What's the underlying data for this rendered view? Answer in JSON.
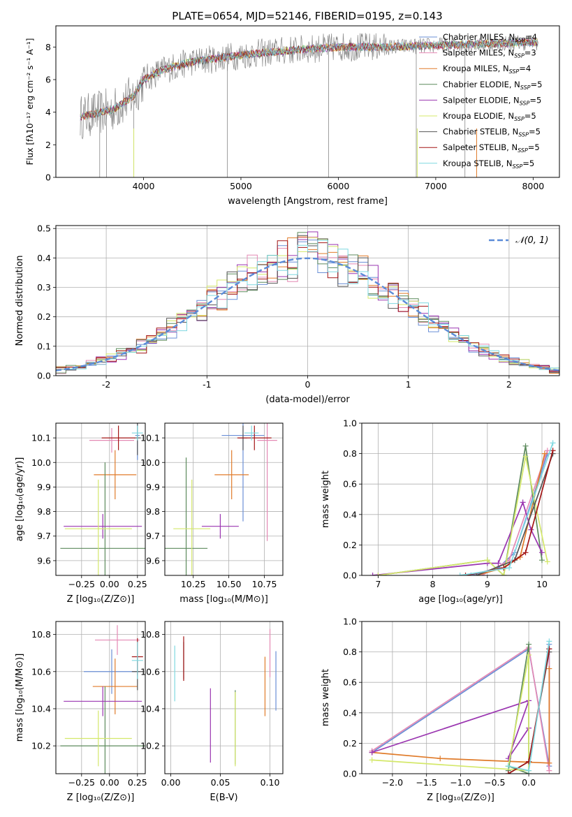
{
  "title": "PLATE=0654, MJD=52146, FIBERID=0195, z=0.143",
  "colors": {
    "Chabrier MILES": "#6a8fd6",
    "Salpeter MILES": "#e489b4",
    "Kroupa MILES": "#e07b2a",
    "Chabrier ELODIE": "#5c8a5c",
    "Salpeter ELODIE": "#9a35b0",
    "Kroupa ELODIE": "#d4e86a",
    "Chabrier STELIB": "#555555",
    "Salpeter STELIB": "#a31515",
    "Kroupa STELIB": "#7fd8e0",
    "data": "#888888",
    "normal": "#5b8bd8"
  },
  "chart_data": [
    {
      "id": "spectrum",
      "type": "line",
      "xlabel": "wavelength [Angstrom, rest frame]",
      "ylabel": "Flux [fλ10⁻¹⁷ erg cm⁻² s⁻¹ A⁻¹]",
      "xlim": [
        3100,
        8270
      ],
      "ylim": [
        0,
        9.3
      ],
      "xticks": [
        4000,
        5000,
        6000,
        7000,
        8000
      ],
      "yticks": [
        0,
        2,
        4,
        6,
        8
      ],
      "grid": false,
      "legend": "right",
      "model_anchor_x": [
        3350,
        3500,
        3700,
        3900,
        4000,
        4200,
        4500,
        5000,
        5500,
        6000,
        6500,
        7000,
        7500,
        8050
      ],
      "model_anchor_y": [
        3.7,
        3.9,
        4.2,
        5.0,
        6.0,
        6.6,
        7.1,
        7.5,
        7.8,
        8.0,
        8.0,
        8.1,
        8.2,
        8.3
      ],
      "series": [
        {
          "name": "Chabrier MILES",
          "nssp": "4"
        },
        {
          "name": "Salpeter MILES",
          "nssp": "3"
        },
        {
          "name": "Kroupa MILES",
          "nssp": "4"
        },
        {
          "name": "Chabrier ELODIE",
          "nssp": "5"
        },
        {
          "name": "Salpeter ELODIE",
          "nssp": "5"
        },
        {
          "name": "Kroupa ELODIE",
          "nssp": "5"
        },
        {
          "name": "Chabrier STELIB",
          "nssp": "5"
        },
        {
          "name": "Salpeter STELIB",
          "nssp": "5"
        },
        {
          "name": "Kroupa STELIB",
          "nssp": "5"
        }
      ]
    },
    {
      "id": "residuals",
      "type": "step",
      "xlabel": "(data-model)/error",
      "ylabel": "Normed distribution",
      "xlim": [
        -2.5,
        2.5
      ],
      "ylim": [
        0,
        0.51
      ],
      "xticks": [
        -2,
        -1,
        0,
        1,
        2
      ],
      "yticks": [
        0.0,
        0.1,
        0.2,
        0.3,
        0.4,
        0.5
      ],
      "grid": true,
      "legend": "top-right",
      "normal_label": "𝒩(0, 1)",
      "bin_width": 0.1
    },
    {
      "id": "age-vs-Z",
      "type": "errorbar",
      "xlabel": "Z [log₁₀(Z/Z⊙)]",
      "ylabel": "age  [log₁₀(age/yr)]",
      "xlim": [
        -0.48,
        0.32
      ],
      "ylim": [
        9.54,
        10.16
      ],
      "xticks": [
        -0.25,
        0.0,
        0.25
      ],
      "xticklabels": [
        "−0.25",
        "0.00",
        "0.25"
      ],
      "yticks": [
        9.6,
        9.7,
        9.8,
        9.9,
        10.0,
        10.1
      ],
      "grid": true,
      "points": [
        {
          "s": "Chabrier MILES",
          "x": 0.25,
          "xe": 0.02,
          "y": 10.11,
          "ye": 0.1
        },
        {
          "s": "Salpeter MILES",
          "x": 0.02,
          "xe": 0.2,
          "y": 10.09,
          "ye": 0.05
        },
        {
          "s": "Kroupa MILES",
          "x": 0.05,
          "xe": 0.19,
          "y": 9.95,
          "ye": 0.1
        },
        {
          "s": "Chabrier ELODIE",
          "x": -0.04,
          "xe": 0.4,
          "y": 9.65,
          "ye": 0.35
        },
        {
          "s": "Salpeter ELODIE",
          "x": -0.06,
          "xe": 0.35,
          "y": 9.74,
          "ye": 0.05
        },
        {
          "s": "Kroupa ELODIE",
          "x": -0.1,
          "xe": 0.3,
          "y": 9.73,
          "ye": 0.2
        },
        {
          "s": "Chabrier STELIB",
          "x": 0.25,
          "xe": 0.03,
          "y": 10.1,
          "ye": 0.07
        },
        {
          "s": "Salpeter STELIB",
          "x": 0.08,
          "xe": 0.15,
          "y": 10.1,
          "ye": 0.05
        },
        {
          "s": "Kroupa STELIB",
          "x": 0.25,
          "xe": 0.05,
          "y": 10.12,
          "ye": 0.03
        }
      ]
    },
    {
      "id": "age-vs-mass",
      "type": "errorbar",
      "xlabel": "mass [log₁₀(M/M⊙)]",
      "ylabel": "",
      "xlim": [
        10.05,
        10.88
      ],
      "ylim": [
        9.54,
        10.16
      ],
      "xticks": [
        10.25,
        10.5,
        10.75
      ],
      "xticklabels": [
        "10.25",
        "10.50",
        "10.75"
      ],
      "yticks": [
        9.6,
        9.7,
        9.8,
        9.9,
        10.0,
        10.1
      ],
      "grid": true,
      "points": [
        {
          "s": "Chabrier MILES",
          "x": 10.6,
          "xe": 0.15,
          "y": 10.11,
          "ye": 0.35
        },
        {
          "s": "Salpeter MILES",
          "x": 10.77,
          "xe": 0.07,
          "y": 10.09,
          "ye": 0.41
        },
        {
          "s": "Kroupa MILES",
          "x": 10.52,
          "xe": 0.12,
          "y": 9.95,
          "ye": 0.1
        },
        {
          "s": "Chabrier ELODIE",
          "x": 10.2,
          "xe": 0.15,
          "y": 9.65,
          "ye": 0.37
        },
        {
          "s": "Salpeter ELODIE",
          "x": 10.44,
          "xe": 0.13,
          "y": 9.74,
          "ye": 0.05
        },
        {
          "s": "Kroupa ELODIE",
          "x": 10.24,
          "xe": 0.13,
          "y": 9.73,
          "ye": 0.2
        },
        {
          "s": "Chabrier STELIB",
          "x": 10.6,
          "xe": 0.03,
          "y": 10.1,
          "ye": 0.05
        },
        {
          "s": "Salpeter STELIB",
          "x": 10.68,
          "xe": 0.12,
          "y": 10.1,
          "ye": 0.05
        },
        {
          "s": "Kroupa STELIB",
          "x": 10.66,
          "xe": 0.05,
          "y": 10.12,
          "ye": 0.03
        }
      ]
    },
    {
      "id": "weight-vs-age",
      "type": "line",
      "xlabel": "age  [log₁₀(age/yr)]",
      "ylabel": "mass weight",
      "xlim": [
        6.7,
        10.32
      ],
      "ylim": [
        0,
        1.0
      ],
      "xticks": [
        7,
        8,
        9,
        10
      ],
      "yticks": [
        0.0,
        0.2,
        0.4,
        0.6,
        0.8,
        1.0
      ],
      "grid": true,
      "series": [
        {
          "s": "Chabrier MILES",
          "x": [
            8.7,
            9.2,
            9.5,
            10.1
          ],
          "y": [
            0.0,
            0.05,
            0.15,
            0.8
          ]
        },
        {
          "s": "Salpeter MILES",
          "x": [
            8.9,
            9.4,
            10.1
          ],
          "y": [
            0.0,
            0.1,
            0.82
          ]
        },
        {
          "s": "Kroupa MILES",
          "x": [
            8.8,
            9.3,
            9.6,
            10.05
          ],
          "y": [
            0.0,
            0.05,
            0.12,
            0.8
          ]
        },
        {
          "s": "Chabrier ELODIE",
          "x": [
            7.0,
            9.0,
            9.3,
            9.7,
            10.0
          ],
          "y": [
            0.0,
            0.1,
            0.0,
            0.85,
            0.1
          ]
        },
        {
          "s": "Salpeter ELODIE",
          "x": [
            6.9,
            9.0,
            9.2,
            9.65,
            9.8,
            10.0
          ],
          "y": [
            0.0,
            0.08,
            0.08,
            0.48,
            0.3,
            0.15
          ]
        },
        {
          "s": "Kroupa ELODIE",
          "x": [
            7.0,
            9.0,
            9.3,
            9.7,
            10.1
          ],
          "y": [
            0.0,
            0.1,
            0.0,
            0.78,
            0.09
          ]
        },
        {
          "s": "Chabrier STELIB",
          "x": [
            8.8,
            9.5,
            10.2
          ],
          "y": [
            0.0,
            0.1,
            0.8
          ]
        },
        {
          "s": "Salpeter STELIB",
          "x": [
            8.6,
            9.3,
            9.7,
            10.2
          ],
          "y": [
            0.0,
            0.05,
            0.15,
            0.82
          ]
        },
        {
          "s": "Kroupa STELIB",
          "x": [
            8.5,
            9.4,
            10.2
          ],
          "y": [
            0.0,
            0.05,
            0.87
          ]
        }
      ]
    },
    {
      "id": "mass-vs-Z",
      "type": "errorbar",
      "xlabel": "Z [log₁₀(Z/Z⊙)]",
      "ylabel": "mass [log₁₀(M/M⊙)]",
      "xlim": [
        -0.48,
        0.32
      ],
      "ylim": [
        10.05,
        10.87
      ],
      "xticks": [
        -0.25,
        0.0,
        0.25
      ],
      "xticklabels": [
        "−0.25",
        "0.00",
        "0.25"
      ],
      "yticks": [
        10.2,
        10.4,
        10.6,
        10.8
      ],
      "grid": true,
      "points": [
        {
          "s": "Chabrier MILES",
          "x": 0.02,
          "xe": 0.25,
          "y": 10.6,
          "ye": 0.12
        },
        {
          "s": "Salpeter MILES",
          "x": 0.07,
          "xe": 0.2,
          "y": 10.77,
          "ye": 0.08
        },
        {
          "s": "Kroupa MILES",
          "x": 0.05,
          "xe": 0.2,
          "y": 10.52,
          "ye": 0.15
        },
        {
          "s": "Chabrier ELODIE",
          "x": -0.04,
          "xe": 0.4,
          "y": 10.2,
          "ye": 0.32
        },
        {
          "s": "Salpeter ELODIE",
          "x": -0.06,
          "xe": 0.35,
          "y": 10.44,
          "ye": 0.08
        },
        {
          "s": "Kroupa ELODIE",
          "x": -0.1,
          "xe": 0.3,
          "y": 10.24,
          "ye": 0.15
        },
        {
          "s": "Chabrier STELIB",
          "x": 0.25,
          "xe": 0.05,
          "y": 10.6,
          "ye": 0.1
        },
        {
          "s": "Salpeter STELIB",
          "x": 0.25,
          "xe": 0.05,
          "y": 10.68,
          "ye": 0.1
        },
        {
          "s": "Kroupa STELIB",
          "x": 0.25,
          "xe": 0.05,
          "y": 10.66,
          "ye": 0.1
        }
      ]
    },
    {
      "id": "mass-vs-ebv",
      "type": "errorbar",
      "xlabel": "E(B-V)",
      "ylabel": "",
      "xlim": [
        -0.006,
        0.113
      ],
      "ylim": [
        10.05,
        10.87
      ],
      "xticks": [
        0.0,
        0.05,
        0.1
      ],
      "xticklabels": [
        "0.00",
        "0.05",
        "0.10"
      ],
      "yticks": [
        10.2,
        10.4,
        10.6,
        10.8
      ],
      "grid": true,
      "points": [
        {
          "s": "Chabrier MILES",
          "x": 0.106,
          "xe": 0,
          "y": 10.55,
          "ye": 0.16
        },
        {
          "s": "Salpeter MILES",
          "x": 0.1,
          "xe": 0,
          "y": 10.7,
          "ye": 0.13
        },
        {
          "s": "Kroupa MILES",
          "x": 0.095,
          "xe": 0,
          "y": 10.52,
          "ye": 0.16
        },
        {
          "s": "Chabrier ELODIE",
          "x": 0.065,
          "xe": 0,
          "y": 10.3,
          "ye": 0.2
        },
        {
          "s": "Salpeter ELODIE",
          "x": 0.04,
          "xe": 0,
          "y": 10.31,
          "ye": 0.2
        },
        {
          "s": "Kroupa ELODIE",
          "x": 0.065,
          "xe": 0,
          "y": 10.29,
          "ye": 0.2
        },
        {
          "s": "Chabrier STELIB",
          "x": 0.013,
          "xe": 0,
          "y": 10.66,
          "ye": 0.1
        },
        {
          "s": "Salpeter STELIB",
          "x": 0.013,
          "xe": 0,
          "y": 10.67,
          "ye": 0.12
        },
        {
          "s": "Kroupa STELIB",
          "x": 0.004,
          "xe": 0,
          "y": 10.59,
          "ye": 0.15
        }
      ]
    },
    {
      "id": "weight-vs-Z",
      "type": "line",
      "xlabel": "Z [log₁₀(Z/Z⊙)]",
      "ylabel": "mass weight",
      "xlim": [
        -2.45,
        0.45
      ],
      "ylim": [
        0,
        1.0
      ],
      "xticks": [
        -2.0,
        -1.5,
        -1.0,
        -0.5,
        0.0
      ],
      "xticklabels": [
        "−2.0",
        "−1.5",
        "−1.0",
        "−0.5",
        "0.0"
      ],
      "yticks": [
        0.0,
        0.2,
        0.4,
        0.6,
        0.8,
        1.0
      ],
      "grid": true,
      "series": [
        {
          "s": "Chabrier MILES",
          "x": [
            -2.3,
            0.0,
            0.3,
            0.3
          ],
          "y": [
            0.14,
            0.82,
            0.05,
            0.85
          ]
        },
        {
          "s": "Salpeter MILES",
          "x": [
            -2.3,
            0.0,
            0.3,
            0.3
          ],
          "y": [
            0.15,
            0.83,
            0.02,
            0.82
          ]
        },
        {
          "s": "Kroupa MILES",
          "x": [
            -2.3,
            -1.3,
            0.3,
            0.3
          ],
          "y": [
            0.14,
            0.1,
            0.07,
            0.69
          ]
        },
        {
          "s": "Chabrier ELODIE",
          "x": [
            -0.3,
            0.0,
            0.0,
            -0.3
          ],
          "y": [
            0.02,
            0.85,
            0.0,
            0.05
          ]
        },
        {
          "s": "Salpeter ELODIE",
          "x": [
            -2.3,
            0.0,
            -0.3,
            0.0
          ],
          "y": [
            0.14,
            0.48,
            0.1,
            0.3
          ]
        },
        {
          "s": "Kroupa ELODIE",
          "x": [
            -2.3,
            0.0,
            0.0,
            -0.3
          ],
          "y": [
            0.09,
            0.02,
            0.78,
            0.05
          ]
        },
        {
          "s": "Chabrier STELIB",
          "x": [
            -0.3,
            0.0,
            0.3
          ],
          "y": [
            0.0,
            0.08,
            0.8
          ]
        },
        {
          "s": "Salpeter STELIB",
          "x": [
            -0.3,
            0.0,
            0.3
          ],
          "y": [
            0.0,
            0.08,
            0.82
          ]
        },
        {
          "s": "Kroupa STELIB",
          "x": [
            -0.3,
            0.0,
            0.3
          ],
          "y": [
            0.05,
            0.02,
            0.87
          ]
        }
      ]
    }
  ]
}
